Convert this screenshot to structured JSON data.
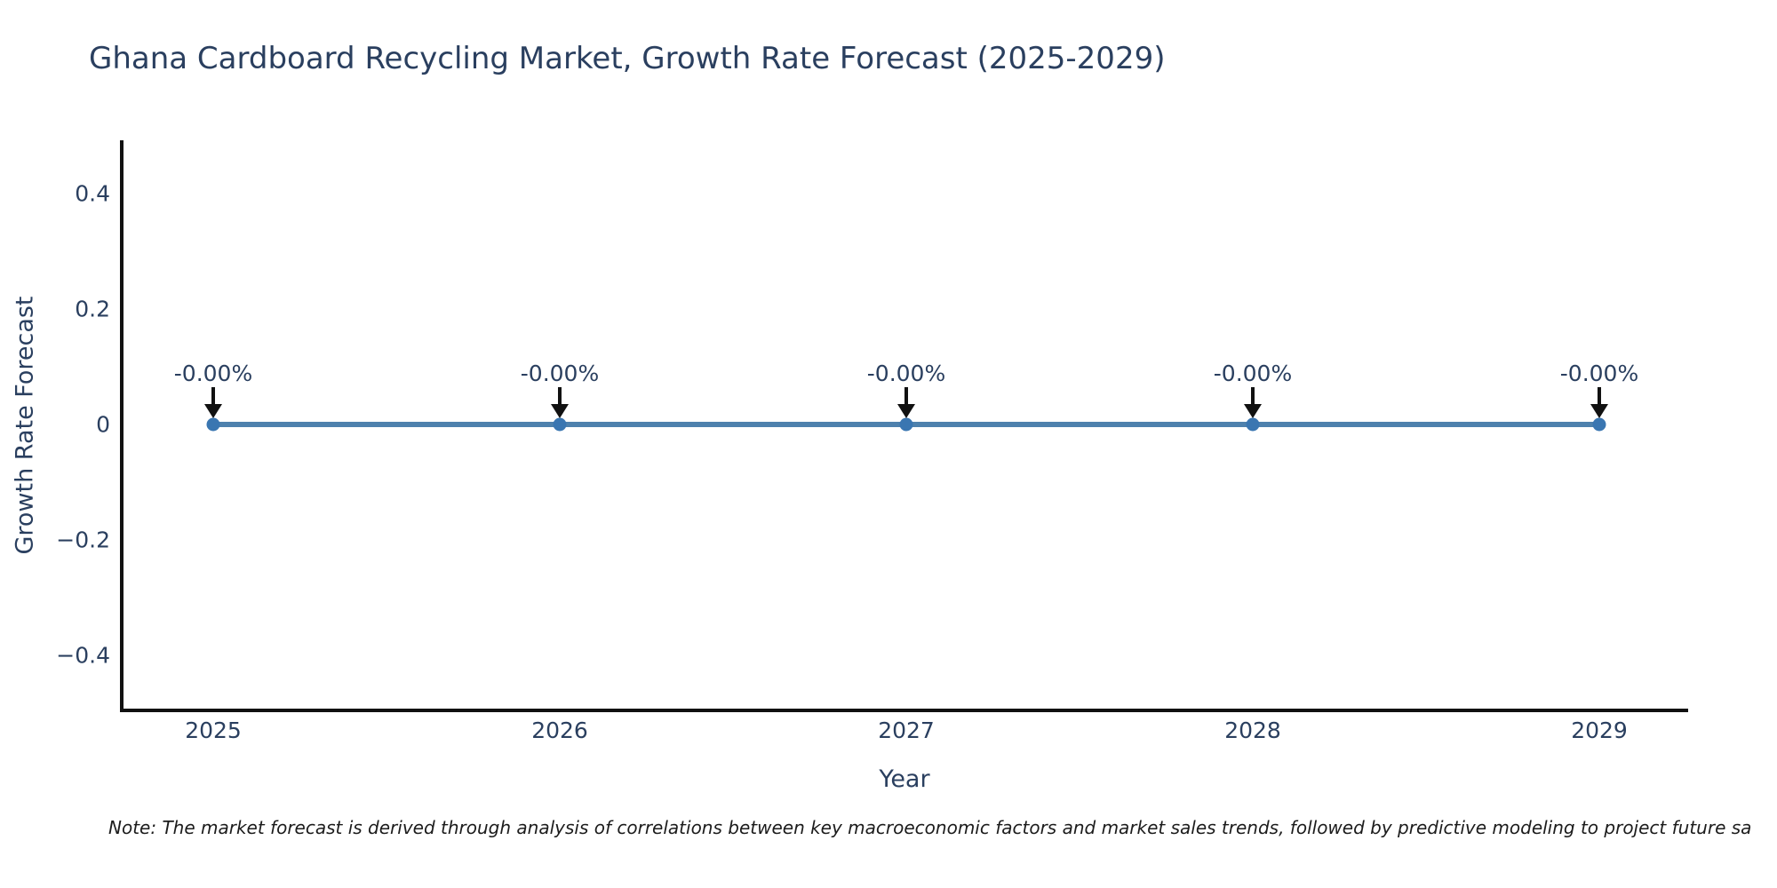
{
  "title": "Ghana Cardboard Recycling Market, Growth Rate Forecast (2025-2029)",
  "note": "Note: The market forecast is derived through analysis of correlations between key macroeconomic factors and market sales trends, followed by predictive modeling to project future sa",
  "colors": {
    "background": "#ffffff",
    "line": "#4e81ad",
    "marker": "#3a76b1",
    "arrow": "#111111",
    "axis": "#111111",
    "text": "#2a3f5f",
    "note_text": "#1c1c1c"
  },
  "chart_data": {
    "type": "line",
    "title": "Ghana Cardboard Recycling Market, Growth Rate Forecast (2025-2029)",
    "xlabel": "Year",
    "ylabel": "Growth Rate Forecast",
    "x": [
      2025,
      2026,
      2027,
      2028,
      2029
    ],
    "values": [
      0,
      0,
      0,
      0,
      0
    ],
    "point_labels": [
      "-0.00%",
      "-0.00%",
      "-0.00%",
      "-0.00%",
      "-0.00%"
    ],
    "xtick_labels": [
      "2025",
      "2026",
      "2027",
      "2028",
      "2029"
    ],
    "ytick_labels": [
      "0.4",
      "0.2",
      "0",
      "−0.2",
      "−0.4"
    ],
    "ylim": [
      -0.5,
      0.5
    ],
    "grid": false,
    "legend": false,
    "annotation_arrows": "black arrows pointing down from each label to its data point"
  }
}
